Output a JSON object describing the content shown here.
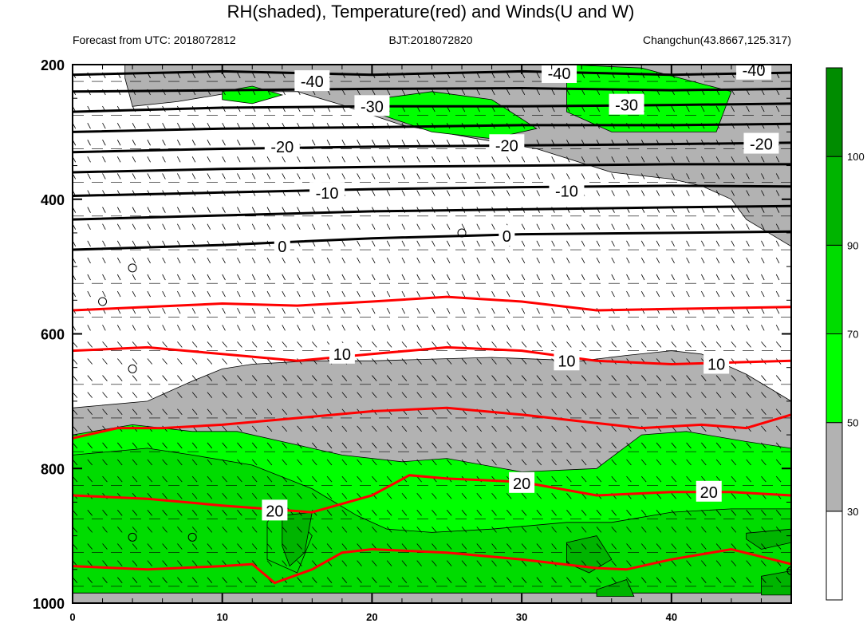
{
  "title": "RH(shaded), Temperature(red) and Winds(U and W)",
  "subtitle_left": "Forecast from UTC: 2018072812",
  "subtitle_center": "BJT:2018072820",
  "subtitle_right": "Changchun(43.8667,125.317)",
  "chart_data": {
    "type": "contour",
    "x_ticks": [
      0,
      10,
      20,
      30,
      40
    ],
    "y_ticks": [
      200,
      400,
      600,
      800,
      1000
    ],
    "xlim": [
      0,
      48
    ],
    "ylim": [
      200,
      1000
    ],
    "y_reversed": true,
    "colorbar": {
      "levels": [
        30,
        50,
        70,
        90,
        100
      ],
      "colors": [
        "#ffffff",
        "#b2b2b2",
        "#00ff00",
        "#00dc00",
        "#00b400",
        "#008c00"
      ]
    },
    "rh_regions": [
      {
        "level": "30-50",
        "color": "#b2b2b2",
        "points": [
          [
            3.5,
            200
          ],
          [
            48,
            200
          ],
          [
            48,
            470
          ],
          [
            45,
            430
          ],
          [
            44,
            400
          ],
          [
            42,
            380
          ],
          [
            40,
            370
          ],
          [
            36,
            360
          ],
          [
            31,
            325
          ],
          [
            27,
            310
          ],
          [
            22,
            290
          ],
          [
            18,
            260
          ],
          [
            15,
            240
          ],
          [
            11,
            240
          ],
          [
            7,
            255
          ],
          [
            4,
            262
          ],
          [
            3.5,
            220
          ]
        ]
      },
      {
        "level": "30-50",
        "color": "#b2b2b2",
        "points": [
          [
            0,
            710
          ],
          [
            5,
            700
          ],
          [
            8,
            670
          ],
          [
            10,
            652
          ],
          [
            12,
            645
          ],
          [
            16,
            640
          ],
          [
            20,
            640
          ],
          [
            28,
            635
          ],
          [
            34,
            640
          ],
          [
            37,
            632
          ],
          [
            40,
            625
          ],
          [
            42,
            630
          ],
          [
            45,
            660
          ],
          [
            48,
            700
          ],
          [
            48,
            1000
          ],
          [
            0,
            1000
          ]
        ]
      },
      {
        "level": "50-70",
        "color": "#00ff00",
        "points": [
          [
            0,
            750
          ],
          [
            4,
            735
          ],
          [
            8,
            745
          ],
          [
            11,
            745
          ],
          [
            14,
            760
          ],
          [
            18,
            780
          ],
          [
            22,
            790
          ],
          [
            25,
            785
          ],
          [
            30,
            805
          ],
          [
            35,
            800
          ],
          [
            38,
            750
          ],
          [
            41,
            745
          ],
          [
            45,
            760
          ],
          [
            48,
            770
          ],
          [
            48,
            985
          ],
          [
            0,
            985
          ]
        ]
      },
      {
        "level": "50-70",
        "color": "#00ff00",
        "points": [
          [
            10,
            240
          ],
          [
            12,
            232
          ],
          [
            14,
            245
          ],
          [
            12,
            258
          ],
          [
            10,
            252
          ]
        ]
      },
      {
        "level": "50-70",
        "color": "#00ff00",
        "points": [
          [
            19,
            255
          ],
          [
            24,
            240
          ],
          [
            28,
            252
          ],
          [
            31,
            295
          ],
          [
            28,
            310
          ],
          [
            24,
            300
          ],
          [
            20,
            270
          ]
        ]
      },
      {
        "level": "50-70",
        "color": "#00ff00",
        "points": [
          [
            33,
            200
          ],
          [
            38,
            205
          ],
          [
            44,
            240
          ],
          [
            43,
            300
          ],
          [
            36,
            300
          ],
          [
            33,
            270
          ]
        ]
      },
      {
        "level": "70-90",
        "color": "#00dc00",
        "points": [
          [
            0,
            780
          ],
          [
            5,
            770
          ],
          [
            8,
            780
          ],
          [
            12,
            795
          ],
          [
            16,
            830
          ],
          [
            19,
            870
          ],
          [
            21,
            890
          ],
          [
            24,
            895
          ],
          [
            28,
            890
          ],
          [
            33,
            880
          ],
          [
            36,
            880
          ],
          [
            40,
            865
          ],
          [
            44,
            860
          ],
          [
            48,
            860
          ],
          [
            48,
            985
          ],
          [
            0,
            985
          ]
        ]
      },
      {
        "level": "70-90",
        "color": "#00dc00",
        "points": [
          [
            14,
            850
          ],
          [
            16,
            900
          ],
          [
            15,
            955
          ],
          [
            13,
            935
          ],
          [
            13,
            880
          ]
        ]
      },
      {
        "level": "90-100",
        "color": "#00b400",
        "points": [
          [
            14,
            870
          ],
          [
            16,
            865
          ],
          [
            15.5,
            925
          ],
          [
            14.5,
            945
          ],
          [
            14,
            915
          ]
        ]
      },
      {
        "level": "90-100",
        "color": "#00b400",
        "points": [
          [
            33,
            910
          ],
          [
            35,
            900
          ],
          [
            36,
            935
          ],
          [
            34.5,
            955
          ],
          [
            33,
            940
          ]
        ]
      },
      {
        "level": "90-100",
        "color": "#00b400",
        "points": [
          [
            45,
            896
          ],
          [
            48,
            890
          ],
          [
            48,
            910
          ],
          [
            46,
            920
          ],
          [
            45,
            905
          ]
        ]
      },
      {
        "level": "90-100",
        "color": "#00b400",
        "points": [
          [
            46,
            960
          ],
          [
            48,
            952
          ],
          [
            48,
            988
          ],
          [
            46,
            988
          ]
        ]
      },
      {
        "level": "90-100",
        "color": "#00b400",
        "points": [
          [
            35,
            980
          ],
          [
            37,
            965
          ],
          [
            37.5,
            990
          ],
          [
            35,
            990
          ]
        ]
      }
    ],
    "temperature_contours": [
      {
        "value": -40,
        "color": "#000000",
        "label": "-40",
        "points": [
          [
            0,
            215
          ],
          [
            10,
            210
          ],
          [
            20,
            215
          ],
          [
            30,
            210
          ],
          [
            40,
            215
          ],
          [
            48,
            212
          ]
        ]
      },
      {
        "value": -40,
        "color": "#000000",
        "label": "",
        "points": [
          [
            0,
            240
          ],
          [
            10,
            238
          ],
          [
            20,
            236
          ],
          [
            30,
            235
          ],
          [
            40,
            238
          ],
          [
            48,
            236
          ]
        ]
      },
      {
        "value": -30,
        "color": "#000000",
        "label": "-30",
        "points": [
          [
            0,
            270
          ],
          [
            10,
            264
          ],
          [
            20,
            262
          ],
          [
            30,
            262
          ],
          [
            40,
            260
          ],
          [
            48,
            258
          ]
        ]
      },
      {
        "value": -30,
        "color": "#000000",
        "label": "",
        "points": [
          [
            0,
            300
          ],
          [
            10,
            295
          ],
          [
            20,
            293
          ],
          [
            30,
            290
          ],
          [
            40,
            290
          ],
          [
            48,
            288
          ]
        ]
      },
      {
        "value": -20,
        "color": "#000000",
        "label": "-20",
        "points": [
          [
            0,
            330
          ],
          [
            10,
            325
          ],
          [
            20,
            322
          ],
          [
            30,
            320
          ],
          [
            40,
            318
          ],
          [
            48,
            316
          ]
        ]
      },
      {
        "value": -20,
        "color": "#000000",
        "label": "",
        "points": [
          [
            0,
            360
          ],
          [
            10,
            355
          ],
          [
            20,
            352
          ],
          [
            30,
            350
          ],
          [
            40,
            348
          ],
          [
            48,
            348
          ]
        ]
      },
      {
        "value": -10,
        "color": "#000000",
        "label": "-10",
        "points": [
          [
            0,
            395
          ],
          [
            10,
            390
          ],
          [
            20,
            385
          ],
          [
            30,
            382
          ],
          [
            40,
            380
          ],
          [
            48,
            381
          ]
        ]
      },
      {
        "value": -10,
        "color": "#000000",
        "label": "",
        "points": [
          [
            0,
            430
          ],
          [
            10,
            424
          ],
          [
            20,
            418
          ],
          [
            30,
            415
          ],
          [
            40,
            412
          ],
          [
            48,
            410
          ]
        ]
      },
      {
        "value": 0,
        "color": "#000000",
        "label": "0",
        "points": [
          [
            0,
            475
          ],
          [
            10,
            468
          ],
          [
            20,
            458
          ],
          [
            30,
            452
          ],
          [
            40,
            450
          ],
          [
            48,
            448
          ]
        ]
      },
      {
        "value": 5,
        "color": "#ff0000",
        "label": "",
        "points": [
          [
            0,
            565
          ],
          [
            5,
            560
          ],
          [
            10,
            555
          ],
          [
            15,
            558
          ],
          [
            20,
            552
          ],
          [
            25,
            545
          ],
          [
            30,
            552
          ],
          [
            35,
            565
          ],
          [
            40,
            563
          ],
          [
            48,
            560
          ]
        ]
      },
      {
        "value": 10,
        "color": "#ff0000",
        "label": "10",
        "points": [
          [
            0,
            625
          ],
          [
            5,
            620
          ],
          [
            10,
            630
          ],
          [
            15,
            640
          ],
          [
            20,
            630
          ],
          [
            25,
            620
          ],
          [
            30,
            625
          ],
          [
            35,
            640
          ],
          [
            40,
            645
          ],
          [
            48,
            640
          ]
        ]
      },
      {
        "value": 15,
        "color": "#ff0000",
        "label": "",
        "points": [
          [
            0,
            755
          ],
          [
            3,
            740
          ],
          [
            6,
            740
          ],
          [
            10,
            735
          ],
          [
            15,
            725
          ],
          [
            20,
            715
          ],
          [
            25,
            710
          ],
          [
            30,
            720
          ],
          [
            34,
            730
          ],
          [
            38,
            740
          ],
          [
            42,
            735
          ],
          [
            45,
            740
          ],
          [
            48,
            720
          ]
        ]
      },
      {
        "value": 20,
        "color": "#ff0000",
        "label": "20",
        "points": [
          [
            0,
            840
          ],
          [
            5,
            845
          ],
          [
            10,
            855
          ],
          [
            16,
            865
          ],
          [
            20,
            840
          ],
          [
            22.5,
            810
          ],
          [
            25,
            815
          ],
          [
            30,
            820
          ],
          [
            35,
            840
          ],
          [
            40,
            835
          ],
          [
            44,
            835
          ],
          [
            48,
            840
          ]
        ]
      },
      {
        "value": 25,
        "color": "#ff0000",
        "label": "",
        "points": [
          [
            0,
            945
          ],
          [
            5,
            950
          ],
          [
            10,
            945
          ],
          [
            12,
            942
          ],
          [
            13.5,
            970
          ],
          [
            16,
            950
          ],
          [
            18,
            925
          ],
          [
            20,
            920
          ],
          [
            25,
            925
          ],
          [
            30,
            935
          ],
          [
            35,
            948
          ],
          [
            37,
            950
          ],
          [
            40,
            935
          ],
          [
            44,
            920
          ],
          [
            48,
            942
          ]
        ]
      }
    ],
    "temperature_labels": [
      {
        "text": "-40",
        "x": 16,
        "y": 225
      },
      {
        "text": "-40",
        "x": 32.5,
        "y": 213
      },
      {
        "text": "-40",
        "x": 45.5,
        "y": 208
      },
      {
        "text": "-30",
        "x": 20,
        "y": 262
      },
      {
        "text": "-30",
        "x": 37,
        "y": 260
      },
      {
        "text": "-20",
        "x": 14,
        "y": 322
      },
      {
        "text": "-20",
        "x": 29,
        "y": 320
      },
      {
        "text": "-20",
        "x": 46,
        "y": 318
      },
      {
        "text": "-10",
        "x": 17,
        "y": 391
      },
      {
        "text": "-10",
        "x": 33,
        "y": 388
      },
      {
        "text": "0",
        "x": 14,
        "y": 470
      },
      {
        "text": "0",
        "x": 29,
        "y": 455
      },
      {
        "text": "10",
        "x": 18,
        "y": 630
      },
      {
        "text": "10",
        "x": 33,
        "y": 640
      },
      {
        "text": "10",
        "x": 43,
        "y": 645
      },
      {
        "text": "20",
        "x": 13.5,
        "y": 863
      },
      {
        "text": "20",
        "x": 30,
        "y": 822
      },
      {
        "text": "20",
        "x": 42.5,
        "y": 835
      }
    ],
    "circles": [
      {
        "x": 26,
        "y": 450
      },
      {
        "x": 4,
        "y": 502
      },
      {
        "x": 2,
        "y": 552
      },
      {
        "x": 4,
        "y": 652
      },
      {
        "x": 4,
        "y": 902
      },
      {
        "x": 8,
        "y": 902
      },
      {
        "x": 48,
        "y": 952
      }
    ]
  }
}
